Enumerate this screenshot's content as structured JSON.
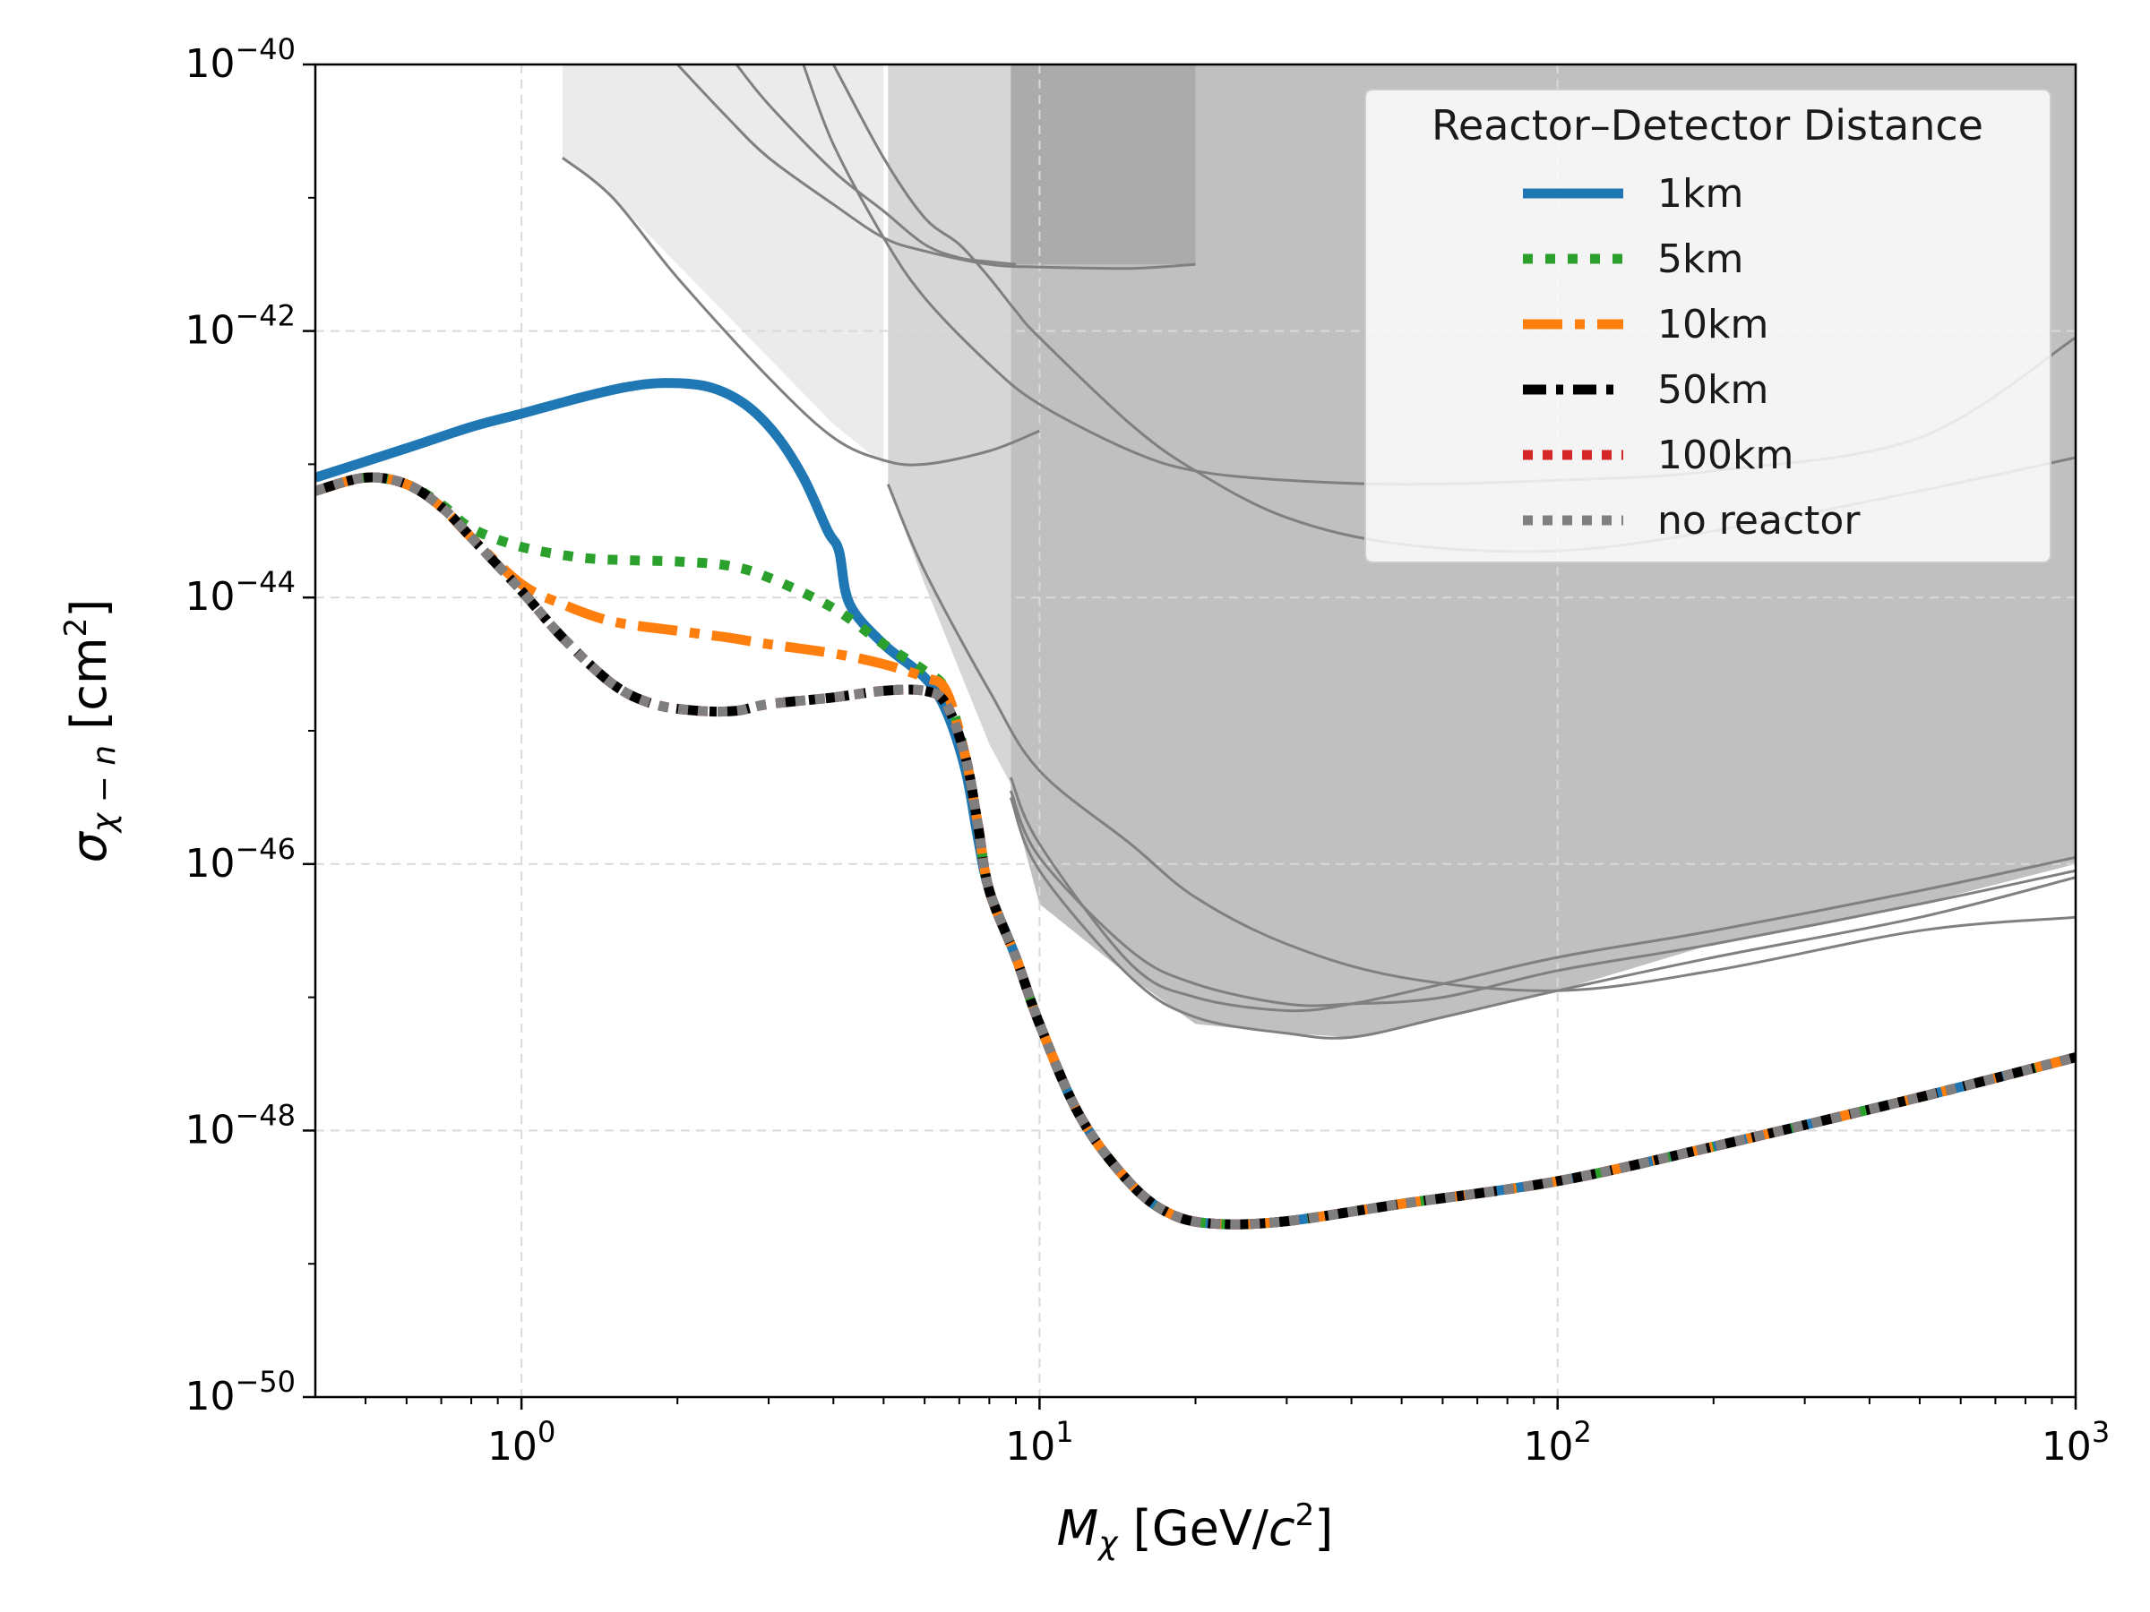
{
  "chart_data": {
    "type": "line",
    "xscale": "log",
    "yscale": "log",
    "xlim": [
      0.4,
      1000
    ],
    "ylim": [
      1e-50,
      1e-40
    ],
    "xlabel": "M_χ [GeV/c²]",
    "ylabel": "σ_χ−n [cm²]",
    "grid": true,
    "x_ticks": [
      {
        "value": 1,
        "base": "10",
        "exp": "0"
      },
      {
        "value": 10,
        "base": "10",
        "exp": "1"
      },
      {
        "value": 100,
        "base": "10",
        "exp": "2"
      },
      {
        "value": 1000,
        "base": "10",
        "exp": "3"
      }
    ],
    "y_ticks": [
      {
        "value": 1e-50,
        "base": "10",
        "exp": "−50"
      },
      {
        "value": 1e-48,
        "base": "10",
        "exp": "−48"
      },
      {
        "value": 1e-46,
        "base": "10",
        "exp": "−46"
      },
      {
        "value": 1e-44,
        "base": "10",
        "exp": "−44"
      },
      {
        "value": 1e-42,
        "base": "10",
        "exp": "−42"
      },
      {
        "value": 1e-40,
        "base": "10",
        "exp": "−40"
      }
    ],
    "legend": {
      "title": "Reactor–Detector Distance",
      "placement": "top-right"
    },
    "series": [
      {
        "name": "1km",
        "color": "#1f77b4",
        "style": "solid",
        "x": [
          0.4,
          0.6,
          0.8,
          1.0,
          1.3,
          1.6,
          1.9,
          2.3,
          2.7,
          3.1,
          3.5,
          3.9,
          4.1,
          4.3,
          5.0,
          6.0,
          6.6,
          7.2,
          7.6,
          8.0,
          9,
          10,
          12,
          15,
          18,
          22,
          30,
          50,
          100,
          200,
          500,
          1000
        ],
        "y": [
          -43.1,
          -42.88,
          -42.72,
          -42.62,
          -42.5,
          -42.42,
          -42.39,
          -42.42,
          -42.55,
          -42.78,
          -43.1,
          -43.5,
          -43.65,
          -44.05,
          -44.35,
          -44.6,
          -44.85,
          -45.3,
          -45.8,
          -46.2,
          -46.7,
          -47.2,
          -47.9,
          -48.4,
          -48.63,
          -48.7,
          -48.68,
          -48.55,
          -48.38,
          -48.12,
          -47.75,
          -47.45
        ]
      },
      {
        "name": "5km",
        "color": "#2ca02c",
        "style": "dotted",
        "x": [
          0.4,
          0.5,
          0.6,
          0.7,
          0.8,
          1.0,
          1.3,
          1.6,
          2.0,
          2.5,
          3.0,
          4.0,
          5.0,
          6.0,
          6.6,
          7.2,
          7.6,
          8.0,
          9,
          10,
          12,
          15,
          18,
          22,
          30,
          50,
          100,
          200,
          500,
          1000
        ],
        "y": [
          -43.2,
          -43.1,
          -43.15,
          -43.3,
          -43.48,
          -43.62,
          -43.7,
          -43.72,
          -43.73,
          -43.76,
          -43.85,
          -44.08,
          -44.35,
          -44.55,
          -44.7,
          -45.2,
          -45.7,
          -46.2,
          -46.7,
          -47.2,
          -47.9,
          -48.4,
          -48.63,
          -48.7,
          -48.68,
          -48.55,
          -48.38,
          -48.12,
          -47.75,
          -47.45
        ]
      },
      {
        "name": "10km",
        "color": "#ff7f0e",
        "style": "dashdot",
        "x": [
          0.4,
          0.5,
          0.6,
          0.7,
          0.8,
          1.0,
          1.2,
          1.5,
          2.0,
          2.5,
          3.0,
          4.0,
          5.0,
          6.0,
          6.6,
          7.2,
          7.6,
          8.0,
          9,
          10,
          12,
          15,
          18,
          22,
          30,
          50,
          100,
          200,
          500,
          1000
        ],
        "y": [
          -43.2,
          -43.1,
          -43.15,
          -43.32,
          -43.55,
          -43.9,
          -44.05,
          -44.18,
          -44.25,
          -44.3,
          -44.35,
          -44.42,
          -44.5,
          -44.6,
          -44.7,
          -45.2,
          -45.7,
          -46.2,
          -46.7,
          -47.2,
          -47.9,
          -48.4,
          -48.63,
          -48.7,
          -48.68,
          -48.55,
          -48.38,
          -48.12,
          -47.75,
          -47.45
        ]
      },
      {
        "name": "50km",
        "color": "#000000",
        "style": "dashdot",
        "x": [
          0.4,
          0.5,
          0.6,
          0.7,
          0.8,
          1.0,
          1.2,
          1.5,
          1.8,
          2.2,
          2.6,
          3.0,
          4.0,
          5.0,
          6.0,
          6.6,
          7.2,
          7.6,
          8.0,
          9,
          10,
          12,
          15,
          18,
          22,
          30,
          50,
          100,
          200,
          500,
          1000
        ],
        "y": [
          -43.2,
          -43.1,
          -43.15,
          -43.32,
          -43.55,
          -43.95,
          -44.3,
          -44.65,
          -44.8,
          -44.85,
          -44.85,
          -44.8,
          -44.75,
          -44.7,
          -44.7,
          -44.8,
          -45.2,
          -45.7,
          -46.2,
          -46.7,
          -47.2,
          -47.9,
          -48.4,
          -48.63,
          -48.7,
          -48.68,
          -48.55,
          -48.38,
          -48.12,
          -47.75,
          -47.45
        ]
      },
      {
        "name": "100km",
        "color": "#d62728",
        "style": "dotted",
        "x": [
          0.4,
          0.5,
          0.6,
          0.7,
          0.8,
          1.0,
          1.2,
          1.5,
          1.8,
          2.2,
          2.6,
          3.0,
          4.0,
          5.0,
          6.0,
          6.6,
          7.2,
          7.6,
          8.0,
          9,
          10,
          12,
          15,
          18,
          22,
          30,
          50,
          100,
          200,
          500,
          1000
        ],
        "y": [
          -43.2,
          -43.1,
          -43.15,
          -43.32,
          -43.55,
          -43.95,
          -44.3,
          -44.65,
          -44.8,
          -44.85,
          -44.85,
          -44.8,
          -44.75,
          -44.7,
          -44.7,
          -44.8,
          -45.2,
          -45.7,
          -46.2,
          -46.7,
          -47.2,
          -47.9,
          -48.4,
          -48.63,
          -48.7,
          -48.68,
          -48.55,
          -48.38,
          -48.12,
          -47.75,
          -47.45
        ]
      },
      {
        "name": "no reactor",
        "color": "#7f7f7f",
        "style": "dotted",
        "x": [
          0.4,
          0.5,
          0.6,
          0.7,
          0.8,
          1.0,
          1.2,
          1.5,
          1.8,
          2.2,
          2.6,
          3.0,
          4.0,
          5.0,
          6.0,
          6.6,
          7.2,
          7.6,
          8.0,
          9,
          10,
          12,
          15,
          18,
          22,
          30,
          50,
          100,
          200,
          500,
          1000
        ],
        "y": [
          -43.2,
          -43.1,
          -43.15,
          -43.32,
          -43.55,
          -43.95,
          -44.3,
          -44.65,
          -44.8,
          -44.85,
          -44.85,
          -44.8,
          -44.75,
          -44.7,
          -44.7,
          -44.8,
          -45.2,
          -45.7,
          -46.2,
          -46.7,
          -47.2,
          -47.9,
          -48.4,
          -48.63,
          -48.7,
          -48.68,
          -48.55,
          -48.38,
          -48.12,
          -47.75,
          -47.45
        ]
      }
    ],
    "exclusion_regions": [
      {
        "name": "region-a",
        "color": "#ebebeb",
        "x": [
          1.2,
          1.5,
          2,
          3,
          4,
          5,
          5,
          8.5,
          1000,
          1000,
          1.2
        ],
        "y": [
          -40.7,
          -41.0,
          -41.5,
          -42.2,
          -42.7,
          -43.0,
          -40,
          -40,
          -40,
          -40,
          -40
        ]
      },
      {
        "name": "region-b",
        "color": "#d6d6d6",
        "x": [
          5.1,
          6,
          8,
          8.8,
          8.8,
          1000,
          1000,
          5.1
        ],
        "y": [
          -43.15,
          -43.9,
          -45.1,
          -45.4,
          -40,
          -40,
          -40,
          -40
        ]
      },
      {
        "name": "region-c",
        "color": "#c0c0c0",
        "x": [
          8.8,
          10,
          15,
          20,
          30,
          40,
          60,
          100,
          200,
          500,
          1000,
          1000,
          8.8
        ],
        "y": [
          -45.5,
          -46.3,
          -46.85,
          -47.2,
          -47.27,
          -47.3,
          -47.15,
          -46.95,
          -46.6,
          -46.3,
          -46.0,
          -40,
          -40
        ]
      },
      {
        "name": "region-d",
        "color": "#ababab",
        "x": [
          8.8,
          20,
          20,
          8.8
        ],
        "y": [
          -40,
          -40,
          -41.5,
          -41.5
        ]
      }
    ],
    "exclusion_curves": [
      {
        "name": "curve-1",
        "x": [
          1.2,
          1.5,
          2,
          3,
          4,
          5,
          6,
          8,
          10
        ],
        "y": [
          -40.7,
          -41.0,
          -41.6,
          -42.35,
          -42.8,
          -42.97,
          -43.0,
          -42.9,
          -42.75
        ]
      },
      {
        "name": "curve-2",
        "x": [
          2,
          2.5,
          3,
          4,
          5,
          6,
          8,
          10,
          15,
          20
        ],
        "y": [
          -40,
          -40.4,
          -40.7,
          -41.05,
          -41.3,
          -41.4,
          -41.5,
          -41.52,
          -41.53,
          -41.5
        ]
      },
      {
        "name": "curve-3",
        "x": [
          2.6,
          3,
          4,
          5,
          6,
          7,
          8,
          9
        ],
        "y": [
          -40,
          -40.3,
          -40.8,
          -41.1,
          -41.35,
          -41.45,
          -41.48,
          -41.5
        ]
      },
      {
        "name": "curve-4",
        "x": [
          3.5,
          4,
          5,
          6,
          8,
          10,
          15,
          20,
          30,
          50,
          100,
          200,
          500,
          1000
        ],
        "y": [
          -40,
          -40.6,
          -41.3,
          -41.75,
          -42.25,
          -42.55,
          -42.9,
          -43.05,
          -43.12,
          -43.15,
          -43.12,
          -43.05,
          -42.8,
          -42.05
        ]
      },
      {
        "name": "curve-5",
        "x": [
          4,
          5,
          6,
          7,
          8,
          9,
          10,
          15,
          20,
          30,
          50,
          100,
          200,
          500,
          1000
        ],
        "y": [
          -40,
          -40.7,
          -41.15,
          -41.35,
          -41.6,
          -41.85,
          -42.05,
          -42.7,
          -43.05,
          -43.4,
          -43.6,
          -43.65,
          -43.5,
          -43.2,
          -42.95
        ]
      },
      {
        "name": "curve-6",
        "x": [
          5.1,
          6,
          8,
          10,
          15,
          20,
          30,
          50,
          100,
          200,
          500,
          1000
        ],
        "y": [
          -43.15,
          -43.8,
          -44.7,
          -45.3,
          -45.85,
          -46.25,
          -46.6,
          -46.85,
          -46.95,
          -46.8,
          -46.5,
          -46.4
        ]
      },
      {
        "name": "curve-7",
        "x": [
          8.8,
          10,
          15,
          20,
          30,
          40,
          60,
          100,
          200,
          500,
          1000
        ],
        "y": [
          -45.35,
          -45.85,
          -46.75,
          -47.0,
          -47.1,
          -47.05,
          -46.9,
          -46.7,
          -46.5,
          -46.2,
          -45.95
        ]
      },
      {
        "name": "curve-8",
        "x": [
          8.8,
          10,
          15,
          20,
          30,
          40,
          60,
          100,
          200,
          500,
          1000
        ],
        "y": [
          -45.45,
          -45.95,
          -46.65,
          -46.9,
          -47.05,
          -47.05,
          -47.0,
          -46.8,
          -46.6,
          -46.3,
          -46.05
        ]
      },
      {
        "name": "curve-9",
        "x": [
          8.8,
          10,
          15,
          20,
          30,
          40,
          60,
          100,
          200,
          500,
          1000
        ],
        "y": [
          -45.5,
          -46.05,
          -46.85,
          -47.15,
          -47.27,
          -47.3,
          -47.15,
          -46.95,
          -46.7,
          -46.4,
          -46.1
        ]
      }
    ]
  }
}
